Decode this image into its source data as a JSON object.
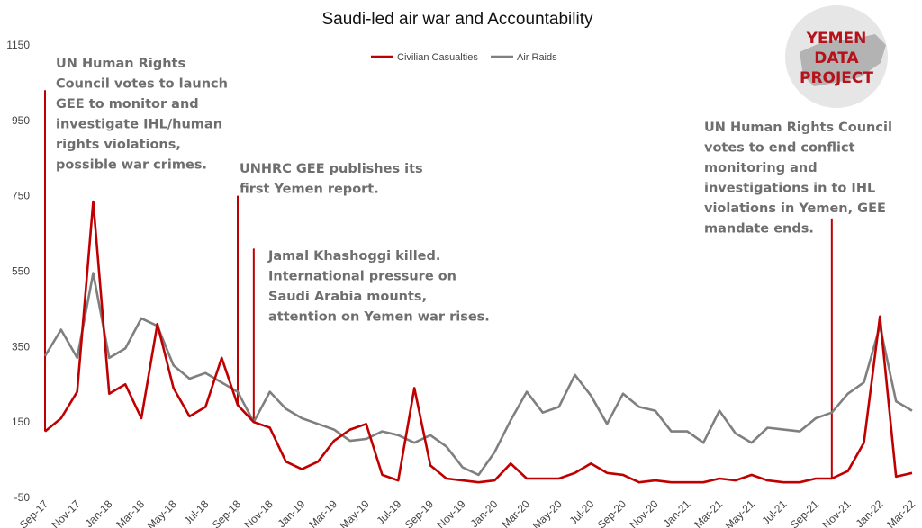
{
  "chart_data": {
    "type": "line",
    "title": "Saudi-led air war and Accountability",
    "xlabel": "",
    "ylabel": "",
    "ylim": [
      -50,
      1150
    ],
    "y_ticks": [
      -50,
      150,
      350,
      550,
      750,
      950,
      1150
    ],
    "legend_position": "top-center",
    "grid": false,
    "x": [
      "Sep-17",
      "Oct-17",
      "Nov-17",
      "Dec-17",
      "Jan-18",
      "Feb-18",
      "Mar-18",
      "Apr-18",
      "May-18",
      "Jun-18",
      "Jul-18",
      "Aug-18",
      "Sep-18",
      "Oct-18",
      "Nov-18",
      "Dec-18",
      "Jan-19",
      "Feb-19",
      "Mar-19",
      "Apr-19",
      "May-19",
      "Jun-19",
      "Jul-19",
      "Aug-19",
      "Sep-19",
      "Oct-19",
      "Nov-19",
      "Dec-19",
      "Jan-20",
      "Feb-20",
      "Mar-20",
      "Apr-20",
      "May-20",
      "Jun-20",
      "Jul-20",
      "Aug-20",
      "Sep-20",
      "Oct-20",
      "Nov-20",
      "Dec-20",
      "Jan-21",
      "Feb-21",
      "Mar-21",
      "Apr-21",
      "May-21",
      "Jun-21",
      "Jul-21",
      "Aug-21",
      "Sep-21",
      "Oct-21",
      "Nov-21",
      "Dec-21",
      "Jan-22",
      "Feb-22",
      "Mar-22"
    ],
    "x_tick_labels": [
      "Sep-17",
      "Nov-17",
      "Jan-18",
      "Mar-18",
      "May-18",
      "Jul-18",
      "Sep-18",
      "Nov-18",
      "Jan-19",
      "Mar-19",
      "May-19",
      "Jul-19",
      "Sep-19",
      "Nov-19",
      "Jan-20",
      "Mar-20",
      "May-20",
      "Jul-20",
      "Sep-20",
      "Nov-20",
      "Jan-21",
      "Mar-21",
      "May-21",
      "Jul-21",
      "Sep-21",
      "Nov-21",
      "Jan-22",
      "Mar-22"
    ],
    "series": [
      {
        "name": "Civilian Casualties",
        "color": "#c00000",
        "values": [
          125,
          160,
          230,
          735,
          225,
          250,
          160,
          410,
          240,
          165,
          190,
          320,
          195,
          150,
          135,
          45,
          25,
          45,
          100,
          130,
          145,
          10,
          -5,
          240,
          35,
          0,
          -5,
          -10,
          -5,
          40,
          0,
          0,
          0,
          15,
          40,
          15,
          10,
          -10,
          -5,
          -10,
          -10,
          -10,
          0,
          -5,
          10,
          -5,
          -10,
          -10,
          0,
          0,
          20,
          95,
          430,
          5,
          15
        ]
      },
      {
        "name": "Air Raids",
        "color": "#7f7f7f",
        "values": [
          325,
          395,
          320,
          545,
          320,
          345,
          425,
          405,
          300,
          265,
          280,
          255,
          230,
          150,
          230,
          185,
          160,
          145,
          130,
          100,
          105,
          125,
          115,
          95,
          115,
          85,
          30,
          10,
          70,
          155,
          230,
          175,
          190,
          275,
          220,
          145,
          225,
          190,
          180,
          125,
          125,
          95,
          180,
          120,
          95,
          135,
          130,
          125,
          160,
          175,
          225,
          255,
          405,
          205,
          180
        ]
      }
    ],
    "annotations": [
      {
        "month": "Sep-17",
        "peak": 1030,
        "lines": [
          "UN Human Rights",
          "Council votes to launch",
          "GEE to monitor and",
          "investigate IHL/human",
          "rights violations,",
          "possible war crimes."
        ]
      },
      {
        "month": "Sep-18",
        "peak": 750,
        "lines": [
          "UNHRC GEE publishes its",
          "first Yemen report."
        ]
      },
      {
        "month": "Oct-18",
        "peak": 610,
        "lines": [
          "Jamal Khashoggi killed.",
          "International pressure on",
          "Saudi Arabia mounts,",
          "attention on Yemen war rises."
        ]
      },
      {
        "month": "Oct-21",
        "peak": 690,
        "lines": [
          "UN Human Rights Council",
          "votes to end conflict",
          "monitoring and",
          "investigations in to IHL",
          "violations in Yemen, GEE",
          "mandate ends."
        ]
      }
    ]
  },
  "logo": {
    "lines": [
      "YEMEN",
      "DATA",
      "PROJECT"
    ],
    "circle_color": "#e6e6e6",
    "map_color": "#b3b3b3",
    "text_color": "#b5121b"
  }
}
